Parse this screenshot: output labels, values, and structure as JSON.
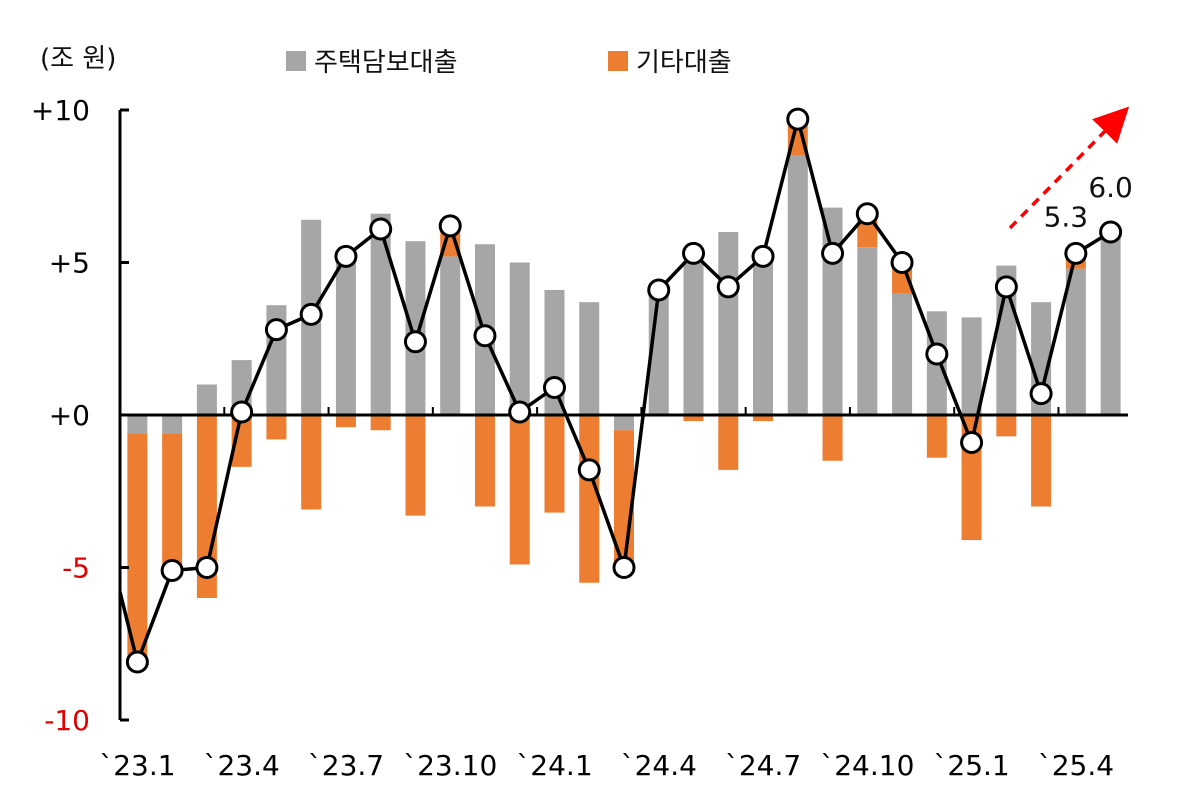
{
  "chart_data": {
    "type": "bar",
    "unit_label": "(조 원)",
    "legend": [
      {
        "name": "주택담보대출",
        "color": "#a6a6a6"
      },
      {
        "name": "기타대출",
        "color": "#ed7d31"
      }
    ],
    "ylim": [
      -10,
      10
    ],
    "y_ticks": [
      {
        "value": 10,
        "label": "+10",
        "color": "#000000"
      },
      {
        "value": 5,
        "label": "+5",
        "color": "#000000"
      },
      {
        "value": 0,
        "label": "+0",
        "color": "#000000"
      },
      {
        "value": -5,
        "label": "-5",
        "color": "#e00000"
      },
      {
        "value": -10,
        "label": "-10",
        "color": "#e00000"
      }
    ],
    "x_tick_labels": [
      {
        "index": 0,
        "label": "`23.1"
      },
      {
        "index": 3,
        "label": "`23.4"
      },
      {
        "index": 6,
        "label": "`23.7"
      },
      {
        "index": 9,
        "label": "`23.10"
      },
      {
        "index": 12,
        "label": "`24.1"
      },
      {
        "index": 15,
        "label": "`24.4"
      },
      {
        "index": 18,
        "label": "`24.7"
      },
      {
        "index": 21,
        "label": "`24.10"
      },
      {
        "index": 24,
        "label": "`25.1"
      },
      {
        "index": 27,
        "label": "`25.4"
      }
    ],
    "series": [
      {
        "name": "주택담보대출",
        "type": "bar",
        "color": "#a6a6a6",
        "values": [
          -0.6,
          -0.6,
          1.0,
          1.8,
          3.6,
          6.4,
          5.1,
          6.6,
          5.7,
          5.2,
          5.6,
          5.0,
          4.1,
          3.7,
          -0.5,
          4.0,
          5.0,
          6.0,
          5.0,
          8.5,
          6.8,
          5.5,
          4.0,
          3.4,
          3.2,
          4.9,
          3.7,
          4.8,
          5.8
        ]
      },
      {
        "name": "기타대출",
        "type": "bar",
        "color": "#ed7d31",
        "values": [
          -7.5,
          -4.5,
          -6.0,
          -1.7,
          -0.8,
          -3.1,
          -0.4,
          -0.5,
          -3.3,
          1.0,
          -3.0,
          -4.9,
          -3.2,
          -5.5,
          -4.5,
          0.1,
          -0.2,
          -1.8,
          -0.2,
          1.2,
          -1.5,
          1.1,
          1.0,
          -1.4,
          -4.1,
          -0.7,
          -3.0,
          0.5,
          0.2
        ]
      },
      {
        "name": "합계",
        "type": "line",
        "color": "#000000",
        "values": [
          -8.1,
          -5.1,
          -5.0,
          0.1,
          2.8,
          3.3,
          5.2,
          6.1,
          2.4,
          6.2,
          2.6,
          0.1,
          0.9,
          -1.8,
          -5.0,
          4.1,
          5.3,
          4.2,
          5.2,
          9.7,
          5.3,
          6.6,
          5.0,
          2.0,
          -0.9,
          4.2,
          0.7,
          5.3,
          6.0
        ]
      }
    ],
    "data_labels": [
      {
        "index": 27,
        "label": "5.3"
      },
      {
        "index": 28,
        "label": "6.0"
      }
    ],
    "annotation": {
      "type": "dashed-arrow",
      "color": "#ff0000"
    }
  }
}
